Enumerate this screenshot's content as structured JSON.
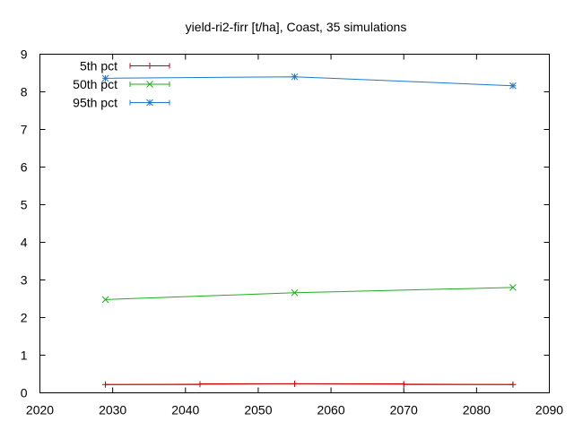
{
  "chart_data": {
    "type": "line",
    "title": "yield-ri2-firr [t/ha], Coast, 35 simulations",
    "xlabel": "",
    "ylabel": "",
    "xlim": [
      2020,
      2090
    ],
    "ylim": [
      0,
      9
    ],
    "xticks": [
      2020,
      2030,
      2040,
      2050,
      2060,
      2070,
      2080,
      2090
    ],
    "yticks": [
      0,
      1,
      2,
      3,
      4,
      5,
      6,
      7,
      8,
      9
    ],
    "grid": false,
    "legend_position": "top-left",
    "series": [
      {
        "name": "5th pct",
        "color": "#cc0000",
        "marker": "plus",
        "points": [
          {
            "x": 2029,
            "y": 0.22,
            "xerr": [
              2029,
              2042
            ]
          },
          {
            "x": 2055,
            "y": 0.24,
            "xerr": [
              2042,
              2070
            ]
          },
          {
            "x": 2085,
            "y": 0.22,
            "xerr": [
              2070,
              2085
            ]
          }
        ]
      },
      {
        "name": "50th pct",
        "color": "#22aa22",
        "marker": "cross",
        "points": [
          {
            "x": 2029,
            "y": 2.48,
            "xerr": [
              2029,
              2029
            ]
          },
          {
            "x": 2055,
            "y": 2.66,
            "xerr": [
              2055,
              2055
            ]
          },
          {
            "x": 2085,
            "y": 2.8,
            "xerr": [
              2085,
              2085
            ]
          }
        ]
      },
      {
        "name": "95th pct",
        "color": "#1f78c8",
        "marker": "star",
        "points": [
          {
            "x": 2029,
            "y": 8.36,
            "xerr": [
              2029,
              2029
            ]
          },
          {
            "x": 2055,
            "y": 8.4,
            "xerr": [
              2055,
              2055
            ]
          },
          {
            "x": 2085,
            "y": 8.16,
            "xerr": [
              2085,
              2085
            ]
          }
        ]
      }
    ]
  }
}
